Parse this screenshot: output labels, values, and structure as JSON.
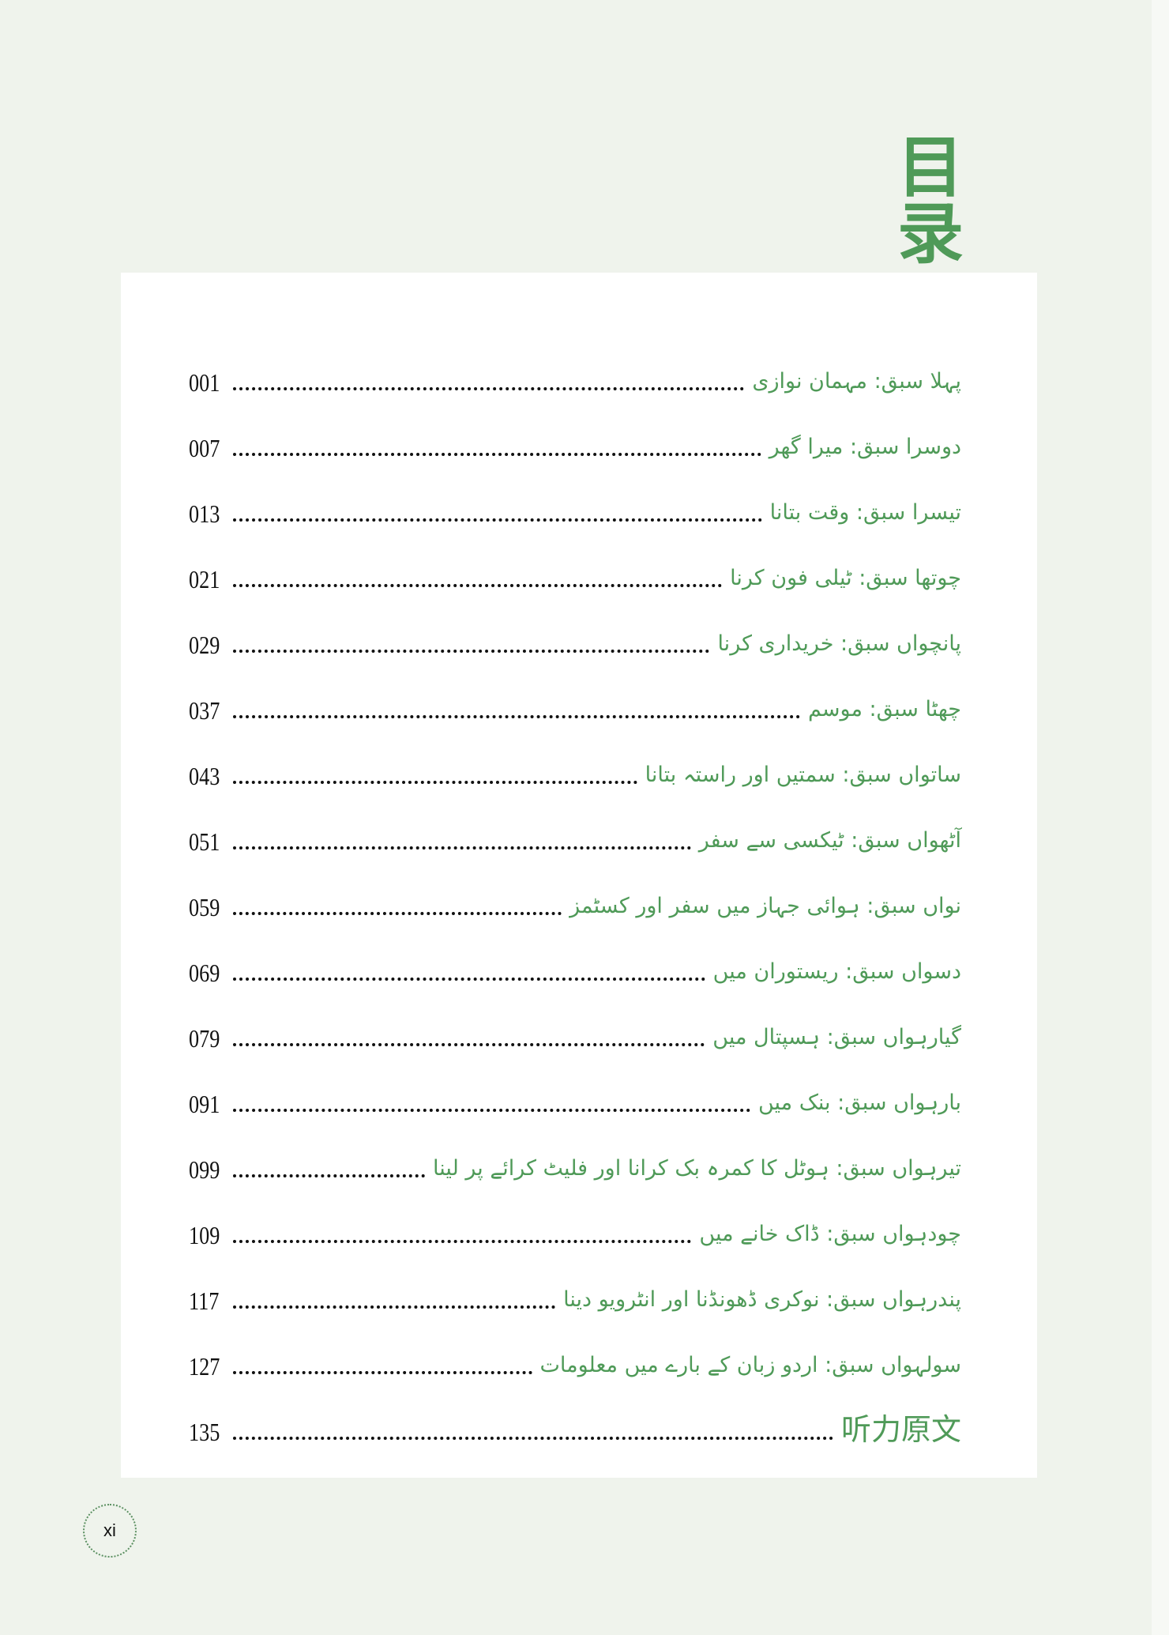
{
  "title": "目录",
  "entries": [
    {
      "label": "پہلا سبق: مہمان نوازی",
      "page": "001"
    },
    {
      "label": "دوسرا سبق: میرا گھر",
      "page": "007"
    },
    {
      "label": "تیسرا سبق: وقت بتانا",
      "page": "013"
    },
    {
      "label": "چوتھا سبق: ٹیلی فون کرنا",
      "page": "021"
    },
    {
      "label": "پانچواں سبق: خریداری کرنا",
      "page": "029"
    },
    {
      "label": "چھٹا سبق: موسم",
      "page": "037"
    },
    {
      "label": "ساتواں سبق: سمتیں اور راستہ بتانا",
      "page": "043"
    },
    {
      "label": "آٹھواں سبق: ٹیکسی سے سفر",
      "page": "051"
    },
    {
      "label": "نواں سبق: ہوائی جہاز میں سفر اور کسٹمز",
      "page": "059"
    },
    {
      "label": "دسواں سبق: ریستوران میں",
      "page": "069"
    },
    {
      "label": "گیارہواں سبق: ہسپتال میں",
      "page": "079"
    },
    {
      "label": "بارہواں سبق: بنک میں",
      "page": "091"
    },
    {
      "label": "تیرہواں سبق: ہوٹل کا کمرہ بک کرانا اور فلیٹ کرائے پر لینا",
      "page": "099"
    },
    {
      "label": "چودہواں سبق: ڈاک خانے میں",
      "page": "109"
    },
    {
      "label": "پندرہواں سبق: نوکری ڈھونڈنا اور انٹرویو دینا",
      "page": "117"
    },
    {
      "label": "سولہواں سبق: اردو زبان کے بارے میں معلومات",
      "page": "127"
    },
    {
      "label": "听力原文",
      "page": "135"
    }
  ],
  "page_number": "xi",
  "colors": {
    "accent": "#4f9a58",
    "background": "#eff3ec",
    "panel": "#ffffff"
  }
}
